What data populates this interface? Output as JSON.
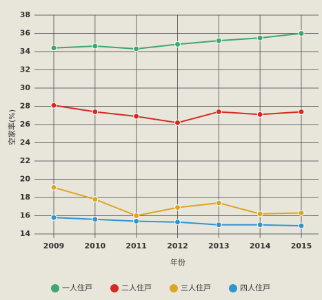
{
  "chart_data": {
    "type": "line",
    "x_label": "年份",
    "y_label": "空家率(%)",
    "categories": [
      "2009",
      "2010",
      "2011",
      "2012",
      "2013",
      "2014",
      "2015"
    ],
    "series": [
      {
        "name": "一人住戸",
        "color": "#3fa66f",
        "values": [
          34.4,
          34.6,
          34.3,
          34.8,
          35.2,
          35.5,
          36.0
        ]
      },
      {
        "name": "二人住戸",
        "color": "#d42a22",
        "values": [
          28.1,
          27.4,
          26.9,
          26.2,
          27.4,
          27.1,
          27.4
        ]
      },
      {
        "name": "三人住戸",
        "color": "#dba622",
        "values": [
          19.1,
          17.8,
          16.0,
          16.9,
          17.4,
          16.2,
          16.3
        ]
      },
      {
        "name": "四人住戸",
        "color": "#2f95cf",
        "values": [
          15.8,
          15.6,
          15.4,
          15.3,
          15.0,
          15.0,
          14.9
        ]
      }
    ],
    "ylim": [
      14,
      38
    ],
    "yticks": [
      14,
      16,
      18,
      20,
      22,
      24,
      26,
      28,
      30,
      32,
      34,
      36,
      38
    ],
    "grid": true
  }
}
